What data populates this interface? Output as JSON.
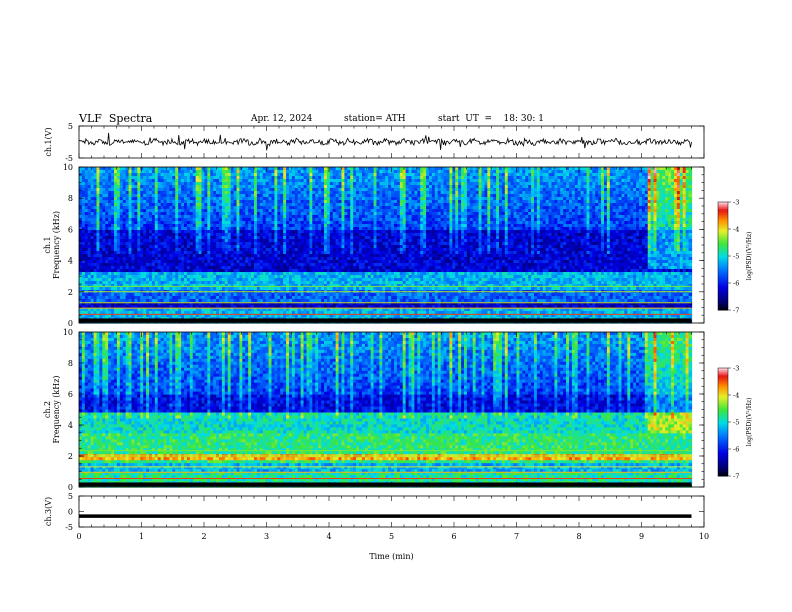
{
  "header": {
    "title": "VLF  Spectra",
    "date": "Apr. 12, 2024",
    "station": "station= ATH",
    "start": "start  UT  =    18: 30: 1"
  },
  "chart_data": [
    {
      "type": "line",
      "id": "ch1-waveform",
      "ylabel": "ch.1(V)",
      "ylim": [
        -5,
        5
      ],
      "yticks": [
        "5",
        "-5"
      ],
      "description_note": "",
      "xlim": [
        0,
        10
      ],
      "series": [
        {
          "values_note": "",
          "mean": 0,
          "amplitude_range": [
            -2,
            2
          ]
        }
      ]
    },
    {
      "type": "heatmap",
      "id": "ch1-spectrogram",
      "ylabel": "ch.1\nFrequency  (kHz)",
      "ylabel_lines": [
        "ch.1",
        "Frequency  (kHz)"
      ],
      "ylim": [
        0,
        10
      ],
      "yticks": [
        "0",
        "2",
        "4",
        "6",
        "8",
        "10"
      ],
      "xlim": [
        0,
        9.8
      ],
      "colorbar": {
        "label": "log(PSD)(V²/Hz)",
        "ticks": [
          "-3",
          "-4",
          "-5",
          "-6",
          "-7"
        ],
        "range": [
          -7,
          -3
        ]
      }
    },
    {
      "type": "heatmap",
      "id": "ch2-spectrogram",
      "ylabel_lines": [
        "ch.2",
        "Frequency  (kHz)"
      ],
      "ylim": [
        0,
        10
      ],
      "yticks": [
        "0",
        "2",
        "4",
        "6",
        "8",
        "10"
      ],
      "xlim": [
        0,
        9.8
      ],
      "colorbar": {
        "label": "log(PSD)(V²/Hz)",
        "ticks": [
          "-3",
          "-4",
          "-5",
          "-6",
          "-7"
        ],
        "range": [
          -7,
          -3
        ]
      }
    },
    {
      "type": "line",
      "id": "ch3-waveform",
      "ylabel": "ch.3(V)",
      "ylim": [
        -5,
        5
      ],
      "yticks": [
        "5",
        "0",
        "-5"
      ],
      "xlim": [
        0,
        10
      ],
      "series": [
        {
          "constant": -1.5
        }
      ]
    }
  ],
  "xaxis": {
    "label": "Time  (min)",
    "ticks": [
      "0",
      "1",
      "2",
      "3",
      "4",
      "5",
      "6",
      "7",
      "8",
      "9",
      "10"
    ],
    "range": [
      0,
      10
    ]
  },
  "colors": {
    "frame": "#000000",
    "trace": "#000000"
  }
}
